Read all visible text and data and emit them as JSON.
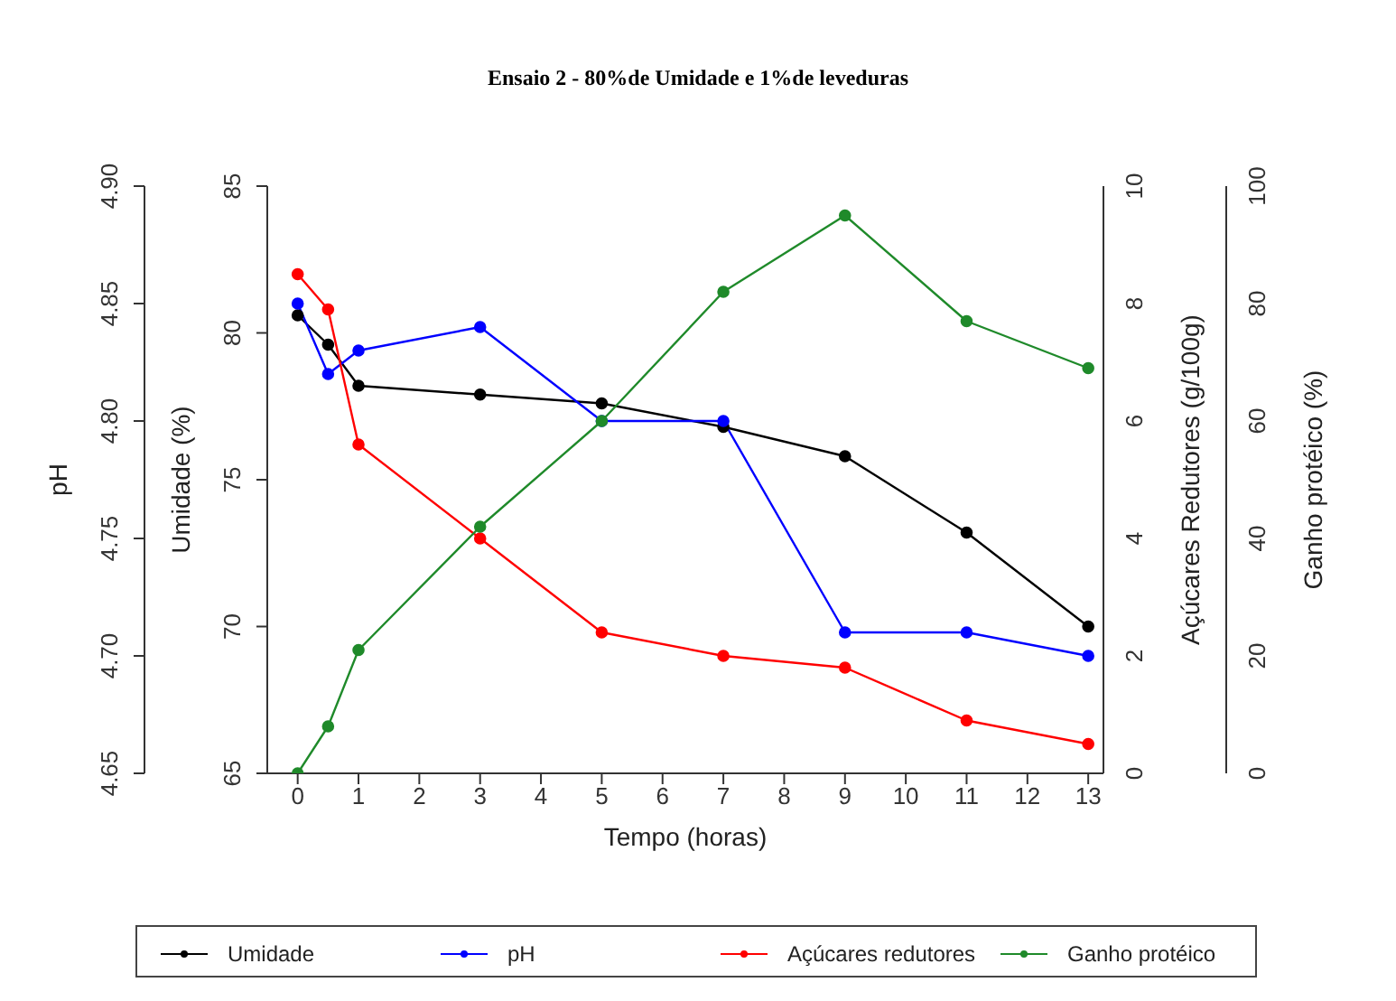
{
  "chart_data": [
    {
      "type": "line",
      "title": "Ensaio 2 - 80%de Umidade e 1%de leveduras",
      "xlabel": "Tempo (horas)",
      "ylabel": "Umidade (%)",
      "y2label": "pH",
      "x": [
        0,
        0.5,
        1,
        3,
        5,
        7,
        9,
        11,
        13
      ],
      "xlim": [
        -0.5,
        13.25
      ],
      "xticks": [
        0,
        1,
        2,
        3,
        4,
        5,
        6,
        7,
        8,
        9,
        10,
        11,
        12,
        13
      ],
      "ylim": [
        65,
        85
      ],
      "yticks": [
        65,
        70,
        75,
        80,
        85
      ],
      "y2lim": [
        4.65,
        4.9
      ],
      "y2ticks": [
        {
          "value": 4.65,
          "label": "4.65"
        },
        {
          "value": 4.7,
          "label": "4.70"
        },
        {
          "value": 4.75,
          "label": "4.75"
        },
        {
          "value": 4.8,
          "label": "4.80"
        },
        {
          "value": 4.85,
          "label": "4.85"
        },
        {
          "value": 4.9,
          "label": "4.90"
        }
      ],
      "series": [
        {
          "name": "Umidade",
          "color": "#000000",
          "values": [
            80.6,
            79.6,
            78.2,
            77.9,
            77.6,
            76.8,
            75.8,
            73.2,
            70.0
          ]
        },
        {
          "name": "pH",
          "color": "#0000ff",
          "axis": "y2",
          "values": [
            4.85,
            4.82,
            4.83,
            4.84,
            4.8,
            4.8,
            4.71,
            4.71,
            4.7
          ]
        }
      ],
      "grid": false,
      "legend": "bottom",
      "marker": "circle",
      "line_style": "solid"
    },
    {
      "type": "line",
      "ylabel": "Açúcares Redutores (g/100g)",
      "y2label": "Ganho protéico (%)",
      "x": [
        0,
        0.5,
        1,
        3,
        5,
        7,
        9,
        11,
        13
      ],
      "xlim": [
        -0.5,
        13.25
      ],
      "tick_labels": "y",
      "ylim": [
        0,
        10
      ],
      "yticks": [
        0,
        2,
        4,
        6,
        8,
        10
      ],
      "y2lim": [
        0,
        100
      ],
      "y2ticks": [
        0,
        20,
        40,
        60,
        80,
        100
      ],
      "series": [
        {
          "name": "Açúcares redutores",
          "color": "#ff0000",
          "values": [
            8.5,
            7.9,
            5.6,
            4.0,
            2.4,
            2.0,
            1.8,
            0.9,
            0.5
          ]
        },
        {
          "name": "Ganho protéico",
          "color": "#1f8a2a",
          "axis": "y2",
          "values": [
            0,
            8,
            21,
            42,
            60,
            82,
            95,
            77,
            69
          ]
        }
      ],
      "grid": false,
      "legend": "bottom",
      "marker": "circle",
      "line_style": "solid"
    }
  ]
}
